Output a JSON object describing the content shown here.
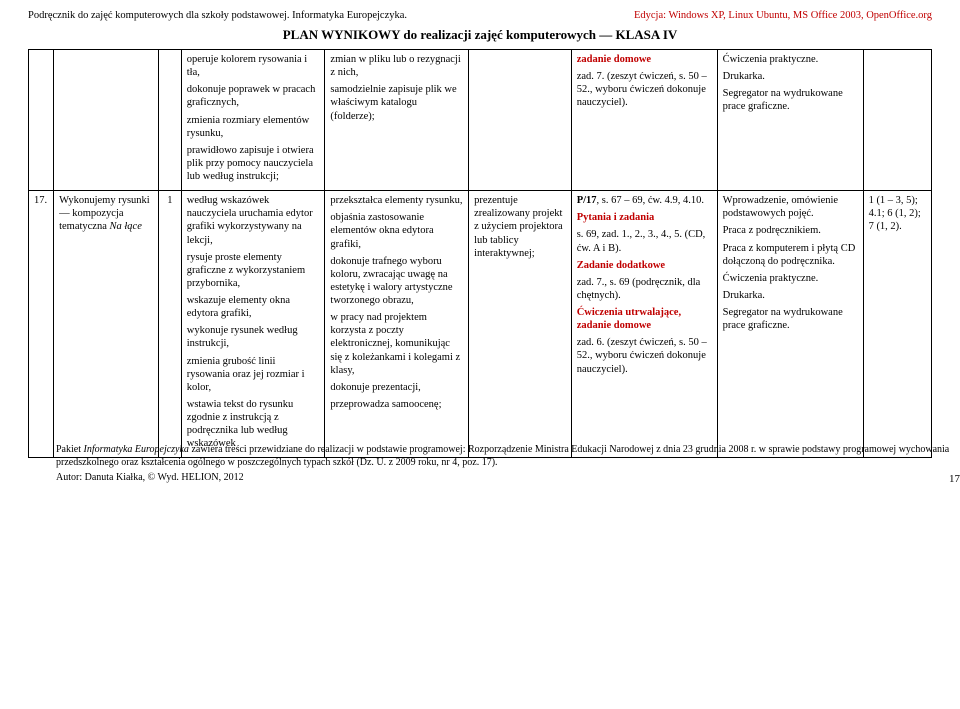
{
  "header": {
    "left": "Podręcznik do zajęć komputerowych dla szkoły podstawowej. Informatyka Europejczyka.",
    "right": "Edycja: Windows XP, Linux Ubuntu, MS Office 2003, OpenOffice.org"
  },
  "title": "PLAN WYNIKOWY do realizacji zajęć komputerowych — KLASA IV",
  "row1": {
    "c1_p1": "operuje kolorem rysowania i tła,",
    "c1_p2": "dokonuje poprawek w pracach graficznych,",
    "c1_p3": "zmienia rozmiary elementów rysunku,",
    "c1_p4": "prawidłowo zapisuje i otwiera plik przy pomocy nauczyciela lub według instrukcji;",
    "c2_p1": "zmian w pliku lub o rezygnacji z nich,",
    "c2_p2": "samodzielnie zapisuje plik we właściwym katalogu (folderze);",
    "c4_p1": "zadanie domowe",
    "c4_p2": "zad. 7. (zeszyt ćwiczeń, s. 50 – 52., wyboru ćwiczeń dokonuje nauczyciel).",
    "c5_p1": "Ćwiczenia praktyczne.",
    "c5_p2": "Drukarka.",
    "c5_p3": "Segregator na wydrukowane prace graficzne."
  },
  "row2": {
    "num": "17.",
    "topic_a": "Wykonujemy rysunki — kompozycja tematyczna ",
    "topic_i": "Na łące",
    "hrs": "1",
    "c1_p1": "według wskazówek nauczyciela uruchamia edytor grafiki wykorzystywany na lekcji,",
    "c1_p2": "rysuje proste elementy graficzne z wykorzystaniem przybornika,",
    "c1_p3": "wskazuje elementy okna edytora grafiki,",
    "c1_p4": "wykonuje rysunek według instrukcji,",
    "c1_p5": "zmienia grubość linii rysowania oraz jej rozmiar i kolor,",
    "c1_p6": "wstawia tekst do rysunku zgodnie z instrukcją z podręcznika lub według wskazówek",
    "c2_p1": "przekształca elementy rysunku,",
    "c2_p2": "objaśnia zastosowanie elementów okna edytora grafiki,",
    "c2_p3": "dokonuje trafnego wyboru koloru, zwracając uwagę na estetykę i walory artystyczne tworzonego obrazu,",
    "c2_p4": "w pracy nad projektem korzysta z poczty elektronicznej, komunikując się z koleżankami i kolegami z klasy,",
    "c2_p5": "dokonuje prezentacji,",
    "c2_p6": "przeprowadza samoocenę;",
    "c3_p1": "prezentuje zrealizowany projekt z użyciem projektora lub tablicy interaktywnej;",
    "c4_p1a": "P/17",
    "c4_p1b": ", s. 67 – 69, ćw. 4.9, 4.10.",
    "c4_p2a": "Pytania i zadania",
    "c4_p3": "s. 69, zad. 1., 2., 3., 4., 5. (CD, ćw. A i B).",
    "c4_p4a": "Zadanie dodatkowe",
    "c4_p5": "zad. 7., s. 69 (podręcznik, dla chętnych).",
    "c4_p6a": "Ćwiczenia utrwalające, zadanie domowe",
    "c4_p7": "zad. 6. (zeszyt ćwiczeń, s. 50 – 52., wyboru ćwiczeń dokonuje nauczyciel).",
    "c5_p1": "Wprowadzenie, omówienie podstawowych pojęć.",
    "c5_p2": "Praca z podręcznikiem.",
    "c5_p3": "Praca z komputerem i płytą CD dołączoną do podręcznika.",
    "c5_p4": "Ćwiczenia praktyczne.",
    "c5_p5": "Drukarka.",
    "c5_p6": "Segregator na wydrukowane prace graficzne.",
    "c6_p1": "1 (1 – 3, 5); 4.1; 6 (1, 2); 7 (1, 2)."
  },
  "footer": {
    "line1a": "Pakiet ",
    "line1b": "Informatyka Europejczyka",
    "line1c": " zawiera treści przewidziane do realizacji w podstawie programowej: Rozporządzenie Ministra Edukacji Narodowej z dnia 23 grudnia 2008 r. w sprawie podstawy programowej wychowania przedszkolnego oraz kształcenia ogólnego w poszczególnych typach szkół (Dz. U. z 2009 roku, nr 4, poz. 17).",
    "line2": "Autor: Danuta Kiałka, © Wyd. HELION, 2012",
    "page": "17"
  }
}
